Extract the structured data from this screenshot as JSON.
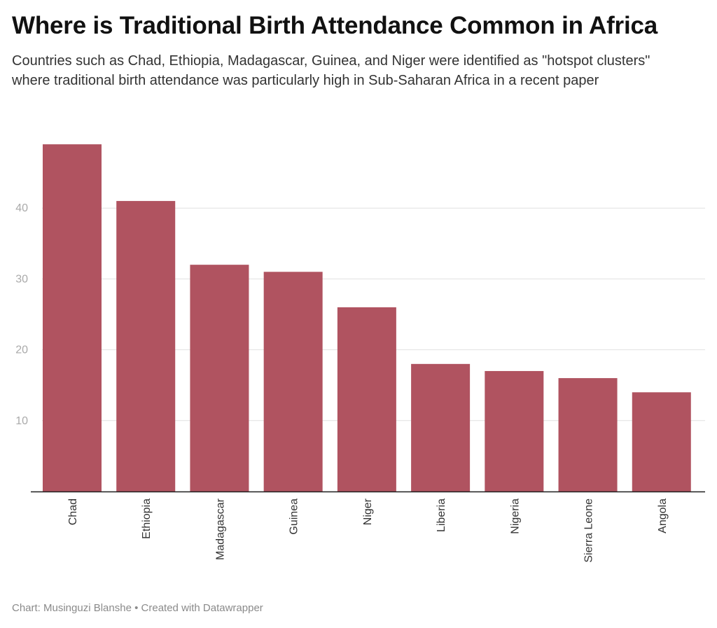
{
  "header": {
    "title": "Where is Traditional Birth Attendance Common in Africa",
    "subtitle": "Countries such as Chad, Ethiopia, Madagascar, Guinea, and Niger were identified as \"hotspot clusters\" where traditional birth attendance was particularly high in Sub-Saharan Africa in a recent paper"
  },
  "footer": {
    "source": "Chart: Musinguzi Blanshe",
    "separator": "•",
    "credit": "Created with Datawrapper"
  },
  "colors": {
    "bar": "#b05360",
    "gridline": "#e1e1e1",
    "axis": "#1f1f1f",
    "tick_label": "#aaaaaa",
    "category_label": "#333333"
  },
  "chart_data": {
    "type": "bar",
    "title": "",
    "xlabel": "",
    "ylabel": "",
    "categories": [
      "Chad",
      "Ethiopia",
      "Madagascar",
      "Guinea",
      "Niger",
      "Liberia",
      "Nigeria",
      "Sierra Leone",
      "Angola"
    ],
    "values": [
      49,
      41,
      32,
      31,
      26,
      18,
      17,
      16,
      14
    ],
    "ylim": [
      0,
      50
    ],
    "yticks": [
      10,
      20,
      30,
      40
    ],
    "grid": true,
    "legend": "none",
    "category_label_orientation": "vertical"
  }
}
